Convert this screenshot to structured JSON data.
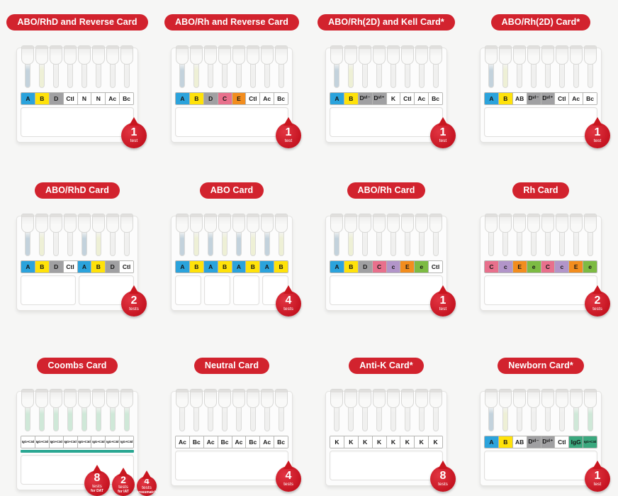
{
  "page": {
    "background": "#f6f6f5",
    "accent_red": "#d2232e",
    "badge_red": "#c9161f",
    "coombs_stripe_teal": "#2aa792"
  },
  "well_colors": {
    "blue": "#2ba3dc",
    "yellow": "#ffe20a",
    "gray": "#a0a0a2",
    "white": "#ffffff",
    "pink": "#e8708c",
    "lilac": "#b295c9",
    "orange": "#f28d1e",
    "green": "#7dbb43",
    "igg": "#3aa87e"
  },
  "liquid_colors": {
    "blue": "#c3d2dc",
    "yellow": "#eef0d6",
    "clear": "#f0f0ef",
    "green": "#cfe8d8"
  },
  "products": [
    {
      "title": "ABO/RhD and Reverse Card",
      "wells": [
        {
          "label": "A",
          "color": "blue"
        },
        {
          "label": "B",
          "color": "yellow"
        },
        {
          "label": "D",
          "color": "gray"
        },
        {
          "label": "Ctl",
          "color": "white"
        },
        {
          "label": "N",
          "color": "white"
        },
        {
          "label": "N",
          "color": "white"
        },
        {
          "label": "Ac",
          "color": "white"
        },
        {
          "label": "Bc",
          "color": "white"
        }
      ],
      "tubes": [
        "blue",
        "yellow",
        "clear",
        "clear",
        "clear",
        "clear",
        "clear",
        "clear"
      ],
      "sections": 1,
      "stripe": false,
      "badges": [
        {
          "count": "1",
          "unit": "test",
          "sub": ""
        }
      ]
    },
    {
      "title": "ABO/Rh and Reverse Card",
      "wells": [
        {
          "label": "A",
          "color": "blue"
        },
        {
          "label": "B",
          "color": "yellow"
        },
        {
          "label": "D",
          "color": "gray"
        },
        {
          "label": "C",
          "color": "pink"
        },
        {
          "label": "E",
          "color": "orange"
        },
        {
          "label": "Ctl",
          "color": "white"
        },
        {
          "label": "Ac",
          "color": "white"
        },
        {
          "label": "Bc",
          "color": "white"
        }
      ],
      "tubes": [
        "blue",
        "yellow",
        "clear",
        "clear",
        "clear",
        "clear",
        "clear",
        "clear"
      ],
      "sections": 1,
      "stripe": false,
      "badges": [
        {
          "count": "1",
          "unit": "test",
          "sub": ""
        }
      ]
    },
    {
      "title": "ABO/Rh(2D) and Kell Card*",
      "wells": [
        {
          "label": "A",
          "color": "blue"
        },
        {
          "label": "B",
          "color": "yellow"
        },
        {
          "label": "Dᵛᴵ⁻",
          "color": "gray"
        },
        {
          "label": "Dᵛᴵ⁺",
          "color": "gray"
        },
        {
          "label": "K",
          "color": "white"
        },
        {
          "label": "Ctl",
          "color": "white"
        },
        {
          "label": "Ac",
          "color": "white"
        },
        {
          "label": "Bc",
          "color": "white"
        }
      ],
      "tubes": [
        "blue",
        "yellow",
        "clear",
        "clear",
        "clear",
        "clear",
        "clear",
        "clear"
      ],
      "sections": 1,
      "stripe": false,
      "badges": [
        {
          "count": "1",
          "unit": "test",
          "sub": ""
        }
      ]
    },
    {
      "title": "ABO/Rh(2D) Card*",
      "wells": [
        {
          "label": "A",
          "color": "blue"
        },
        {
          "label": "B",
          "color": "yellow"
        },
        {
          "label": "AB",
          "color": "white"
        },
        {
          "label": "Dᵛᴵ⁻",
          "color": "gray"
        },
        {
          "label": "Dᵛᴵ⁺",
          "color": "gray"
        },
        {
          "label": "Ctl",
          "color": "white"
        },
        {
          "label": "Ac",
          "color": "white"
        },
        {
          "label": "Bc",
          "color": "white"
        }
      ],
      "tubes": [
        "blue",
        "yellow",
        "clear",
        "clear",
        "clear",
        "clear",
        "clear",
        "clear"
      ],
      "sections": 1,
      "stripe": false,
      "badges": [
        {
          "count": "1",
          "unit": "test",
          "sub": ""
        }
      ]
    },
    {
      "title": "ABO/RhD Card",
      "wells": [
        {
          "label": "A",
          "color": "blue"
        },
        {
          "label": "B",
          "color": "yellow"
        },
        {
          "label": "D",
          "color": "gray"
        },
        {
          "label": "Ctl",
          "color": "white"
        },
        {
          "label": "A",
          "color": "blue"
        },
        {
          "label": "B",
          "color": "yellow"
        },
        {
          "label": "D",
          "color": "gray"
        },
        {
          "label": "Ctl",
          "color": "white"
        }
      ],
      "tubes": [
        "blue",
        "yellow",
        "clear",
        "clear",
        "blue",
        "yellow",
        "clear",
        "clear"
      ],
      "sections": 2,
      "stripe": false,
      "badges": [
        {
          "count": "2",
          "unit": "tests",
          "sub": ""
        }
      ]
    },
    {
      "title": "ABO Card",
      "wells": [
        {
          "label": "A",
          "color": "blue"
        },
        {
          "label": "B",
          "color": "yellow"
        },
        {
          "label": "A",
          "color": "blue"
        },
        {
          "label": "B",
          "color": "yellow"
        },
        {
          "label": "A",
          "color": "blue"
        },
        {
          "label": "B",
          "color": "yellow"
        },
        {
          "label": "A",
          "color": "blue"
        },
        {
          "label": "B",
          "color": "yellow"
        }
      ],
      "tubes": [
        "blue",
        "yellow",
        "blue",
        "yellow",
        "blue",
        "yellow",
        "blue",
        "yellow"
      ],
      "sections": 4,
      "stripe": false,
      "badges": [
        {
          "count": "4",
          "unit": "tests",
          "sub": ""
        }
      ]
    },
    {
      "title": "ABO/Rh Card",
      "wells": [
        {
          "label": "A",
          "color": "blue"
        },
        {
          "label": "B",
          "color": "yellow"
        },
        {
          "label": "D",
          "color": "gray"
        },
        {
          "label": "C",
          "color": "pink"
        },
        {
          "label": "c",
          "color": "lilac"
        },
        {
          "label": "E",
          "color": "orange"
        },
        {
          "label": "e",
          "color": "green"
        },
        {
          "label": "Ctl",
          "color": "white"
        }
      ],
      "tubes": [
        "blue",
        "yellow",
        "clear",
        "clear",
        "clear",
        "clear",
        "clear",
        "clear"
      ],
      "sections": 1,
      "stripe": false,
      "badges": [
        {
          "count": "1",
          "unit": "test",
          "sub": ""
        }
      ]
    },
    {
      "title": "Rh Card",
      "wells": [
        {
          "label": "C",
          "color": "pink"
        },
        {
          "label": "c",
          "color": "lilac"
        },
        {
          "label": "E",
          "color": "orange"
        },
        {
          "label": "e",
          "color": "green"
        },
        {
          "label": "C",
          "color": "pink"
        },
        {
          "label": "c",
          "color": "lilac"
        },
        {
          "label": "E",
          "color": "orange"
        },
        {
          "label": "e",
          "color": "green"
        }
      ],
      "tubes": [
        "clear",
        "clear",
        "clear",
        "clear",
        "clear",
        "clear",
        "clear",
        "clear"
      ],
      "sections": 1,
      "stripe": false,
      "badges": [
        {
          "count": "2",
          "unit": "tests",
          "sub": ""
        }
      ]
    },
    {
      "title": "Coombs Card",
      "wells": [
        {
          "label": "IgG+C3d",
          "color": "white",
          "small": true
        },
        {
          "label": "IgG+C3d",
          "color": "white",
          "small": true
        },
        {
          "label": "IgG+C3d",
          "color": "white",
          "small": true
        },
        {
          "label": "IgG+C3d",
          "color": "white",
          "small": true
        },
        {
          "label": "IgG+C3d",
          "color": "white",
          "small": true
        },
        {
          "label": "IgG+C3d",
          "color": "white",
          "small": true
        },
        {
          "label": "IgG+C3d",
          "color": "white",
          "small": true
        },
        {
          "label": "IgG+C3d",
          "color": "white",
          "small": true
        }
      ],
      "tubes": [
        "green",
        "green",
        "green",
        "green",
        "green",
        "green",
        "green",
        "green"
      ],
      "sections": 1,
      "stripe": true,
      "badges": [
        {
          "count": "8",
          "unit": "tests",
          "sub": "for DAT"
        },
        {
          "count": "2",
          "unit": "tests",
          "sub": "for IAT"
        },
        {
          "count": "4",
          "unit": "tests",
          "sub": "crossmatch"
        }
      ]
    },
    {
      "title": "Neutral Card",
      "wells": [
        {
          "label": "Ac",
          "color": "white"
        },
        {
          "label": "Bc",
          "color": "white"
        },
        {
          "label": "Ac",
          "color": "white"
        },
        {
          "label": "Bc",
          "color": "white"
        },
        {
          "label": "Ac",
          "color": "white"
        },
        {
          "label": "Bc",
          "color": "white"
        },
        {
          "label": "Ac",
          "color": "white"
        },
        {
          "label": "Bc",
          "color": "white"
        }
      ],
      "tubes": [
        "clear",
        "clear",
        "clear",
        "clear",
        "clear",
        "clear",
        "clear",
        "clear"
      ],
      "sections": 1,
      "stripe": false,
      "badges": [
        {
          "count": "4",
          "unit": "tests",
          "sub": ""
        }
      ]
    },
    {
      "title": "Anti-K Card*",
      "wells": [
        {
          "label": "K",
          "color": "white"
        },
        {
          "label": "K",
          "color": "white"
        },
        {
          "label": "K",
          "color": "white"
        },
        {
          "label": "K",
          "color": "white"
        },
        {
          "label": "K",
          "color": "white"
        },
        {
          "label": "K",
          "color": "white"
        },
        {
          "label": "K",
          "color": "white"
        },
        {
          "label": "K",
          "color": "white"
        }
      ],
      "tubes": [
        "clear",
        "clear",
        "clear",
        "clear",
        "clear",
        "clear",
        "clear",
        "clear"
      ],
      "sections": 1,
      "stripe": false,
      "badges": [
        {
          "count": "8",
          "unit": "tests",
          "sub": ""
        }
      ]
    },
    {
      "title": "Newborn Card*",
      "wells": [
        {
          "label": "A",
          "color": "blue"
        },
        {
          "label": "B",
          "color": "yellow"
        },
        {
          "label": "AB",
          "color": "white"
        },
        {
          "label": "Dᵛᴵ⁻",
          "color": "gray"
        },
        {
          "label": "Dᵛᴵ⁺",
          "color": "gray"
        },
        {
          "label": "Ctl",
          "color": "white"
        },
        {
          "label": "IgG",
          "color": "igg"
        },
        {
          "label": "IgG+C3d",
          "color": "igg",
          "small": true
        }
      ],
      "tubes": [
        "blue",
        "yellow",
        "clear",
        "clear",
        "clear",
        "clear",
        "green",
        "green"
      ],
      "sections": 1,
      "stripe": false,
      "badges": [
        {
          "count": "1",
          "unit": "test",
          "sub": ""
        }
      ]
    }
  ]
}
